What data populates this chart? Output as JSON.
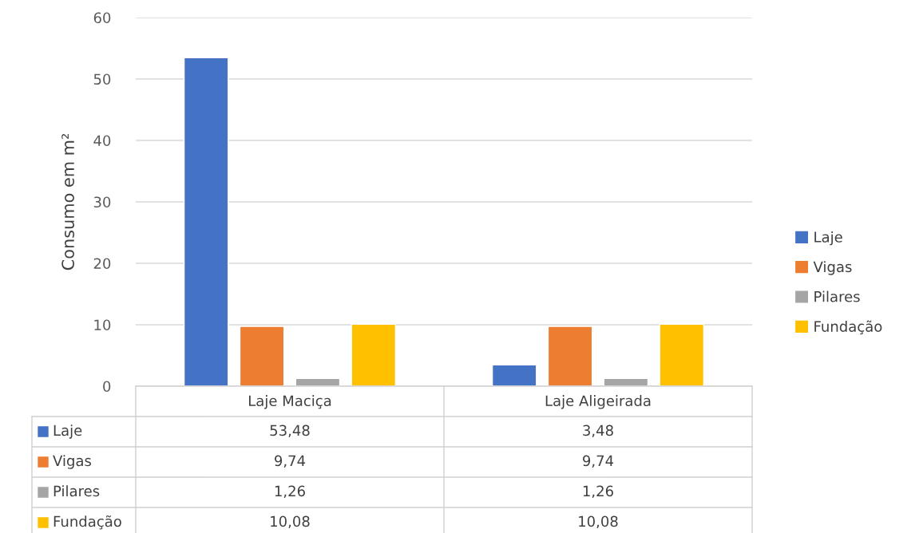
{
  "chart_data": {
    "type": "bar",
    "ylabel": "Consumo em m²",
    "categories": [
      "Laje Maciça",
      "Laje Aligeirada"
    ],
    "series": [
      {
        "name": "Laje",
        "color": "#4472c4",
        "values": [
          53.48,
          3.48
        ],
        "value_labels": [
          "53,48",
          "3,48"
        ]
      },
      {
        "name": "Vigas",
        "color": "#ed7d31",
        "values": [
          9.74,
          9.74
        ],
        "value_labels": [
          "9,74",
          "9,74"
        ]
      },
      {
        "name": "Pilares",
        "color": "#a5a5a5",
        "values": [
          1.26,
          1.26
        ],
        "value_labels": [
          "1,26",
          "1,26"
        ]
      },
      {
        "name": "Fundação",
        "color": "#ffc000",
        "values": [
          10.08,
          10.08
        ],
        "value_labels": [
          "10,08",
          "10,08"
        ]
      }
    ],
    "ylim": [
      0,
      60
    ],
    "yticks": [
      0,
      10,
      20,
      30,
      40,
      50,
      60
    ],
    "grid": "y",
    "legend": "right"
  }
}
